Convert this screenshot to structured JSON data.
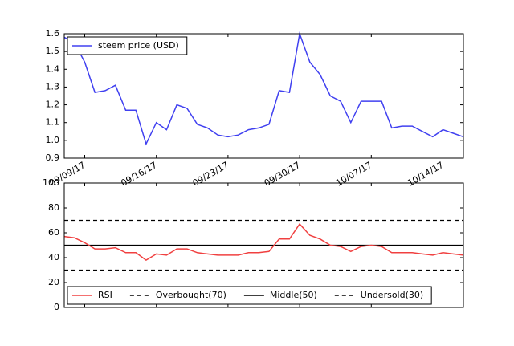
{
  "chart_data": [
    {
      "type": "line",
      "x": [
        "09/07/17",
        "09/08/17",
        "09/09/17",
        "09/10/17",
        "09/11/17",
        "09/12/17",
        "09/13/17",
        "09/14/17",
        "09/15/17",
        "09/16/17",
        "09/17/17",
        "09/18/17",
        "09/19/17",
        "09/20/17",
        "09/21/17",
        "09/22/17",
        "09/23/17",
        "09/24/17",
        "09/25/17",
        "09/26/17",
        "09/27/17",
        "09/28/17",
        "09/29/17",
        "09/30/17",
        "10/01/17",
        "10/02/17",
        "10/03/17",
        "10/04/17",
        "10/05/17",
        "10/06/17",
        "10/07/17",
        "10/08/17",
        "10/09/17",
        "10/10/17",
        "10/11/17",
        "10/12/17",
        "10/13/17",
        "10/14/17",
        "10/15/17",
        "10/16/17"
      ],
      "series": [
        {
          "name": "steem price (USD)",
          "color": "#4040f0",
          "values": [
            1.58,
            1.55,
            1.44,
            1.27,
            1.28,
            1.31,
            1.17,
            1.17,
            0.98,
            1.1,
            1.06,
            1.2,
            1.18,
            1.09,
            1.07,
            1.03,
            1.02,
            1.03,
            1.06,
            1.07,
            1.09,
            1.28,
            1.27,
            1.6,
            1.44,
            1.37,
            1.25,
            1.22,
            1.1,
            1.22,
            1.22,
            1.22,
            1.07,
            1.08,
            1.08,
            1.05,
            1.02,
            1.06,
            1.04,
            1.02
          ]
        }
      ],
      "xlim": [
        "09/07/17",
        "10/16/17"
      ],
      "xticks": [
        "09/09/17",
        "09/16/17",
        "09/23/17",
        "09/30/17",
        "10/07/17",
        "10/14/17"
      ],
      "ylim": [
        0.9,
        1.6
      ],
      "yticks": [
        0.9,
        {
          "value": 1.0,
          "label": "1.0"
        },
        1.1,
        1.2,
        1.3,
        1.4,
        1.5,
        1.6
      ],
      "legend": "upper left"
    },
    {
      "type": "line",
      "series": [
        {
          "name": "RSI",
          "color": "#f04040",
          "values": [
            57,
            56,
            52,
            47,
            47,
            48,
            44,
            44,
            38,
            43,
            42,
            47,
            47,
            44,
            43,
            42,
            42,
            42,
            44,
            44,
            45,
            55,
            55,
            67,
            58,
            55,
            50,
            49,
            45,
            49,
            50,
            49,
            44,
            44,
            44,
            43,
            42,
            44,
            43,
            42
          ]
        }
      ],
      "reference_lines": [
        {
          "name": "Overbought(70)",
          "value": 70,
          "dash": "dashed",
          "color": "#000000"
        },
        {
          "name": "Middle(50)",
          "value": 50,
          "dash": "solid",
          "color": "#000000"
        },
        {
          "name": "Undersold(30)",
          "value": 30,
          "dash": "dashed",
          "color": "#000000"
        }
      ],
      "ylim": [
        0,
        100
      ],
      "yticks": [
        0,
        20,
        40,
        60,
        80,
        100
      ],
      "legend": "lower left"
    }
  ]
}
